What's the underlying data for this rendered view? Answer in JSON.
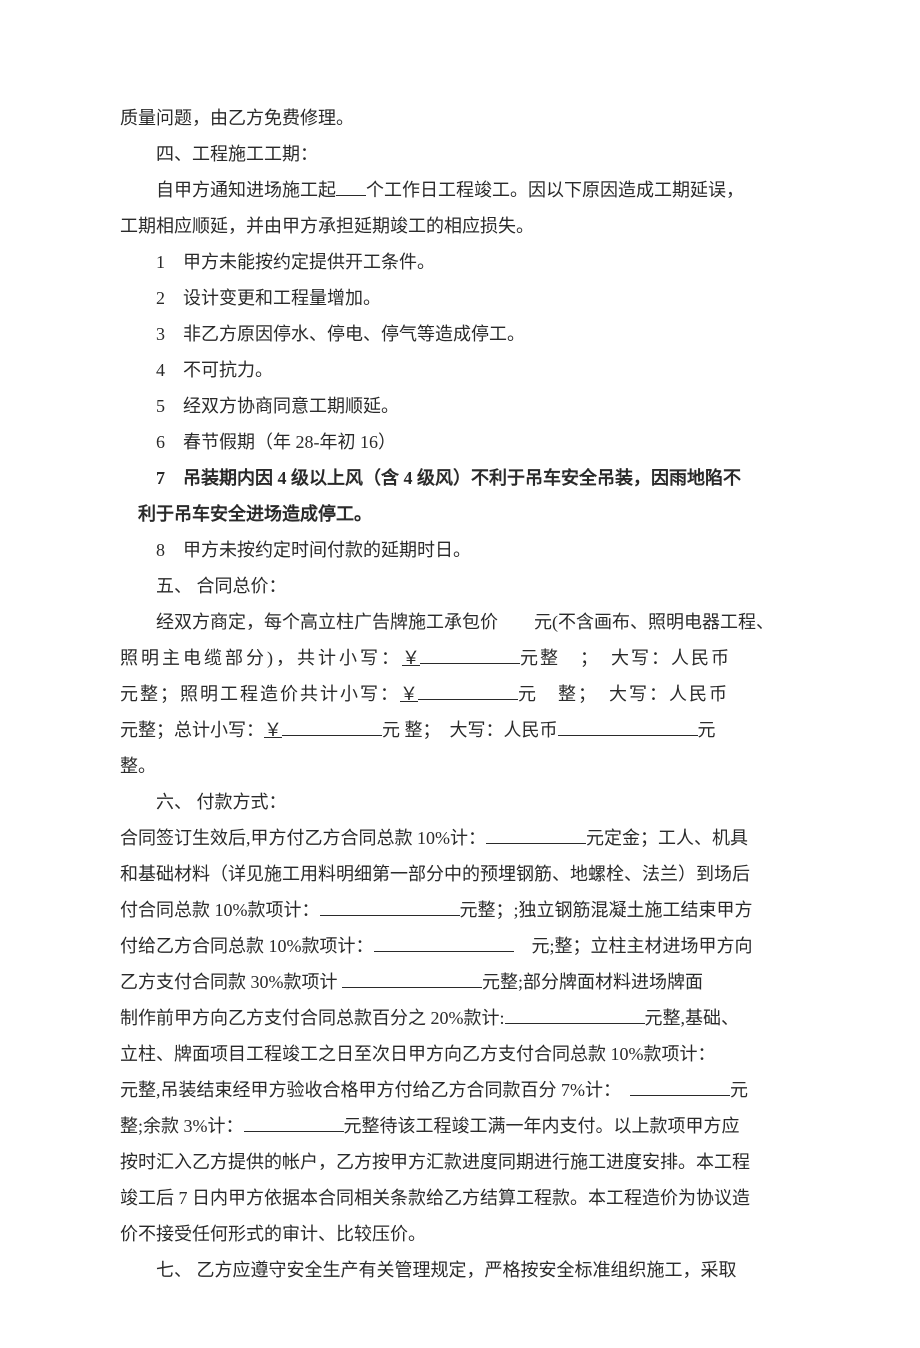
{
  "topLine": "质量问题，由乙方免费修理。",
  "sec4": {
    "title": "四、工程施工工期：",
    "intro_a": "自甲方通知进场施工起",
    "intro_b": "个工作日工程竣工。因以下原因造成工期延误，",
    "intro_c": "工期相应顺延，并由甲方承担延期竣工的相应损失。",
    "items": [
      "1　甲方未能按约定提供开工条件。",
      "2　设计变更和工程量增加。",
      "3　非乙方原因停水、停电、停气等造成停工。",
      "4　不可抗力。",
      "5　经双方协商同意工期顺延。",
      "6　春节假期（年 28-年初 16）"
    ],
    "item7a": "7　吊装期内因 4 级以上风（含 4 级风）不利于吊车安全吊装，因雨地陷不",
    "item7b": "利于吊车安全进场造成停工。",
    "item8": "8　甲方未按约定时间付款的延期时日。"
  },
  "sec5": {
    "title": "五、 合同总价：",
    "l1": "经双方商定，每个高立柱广告牌施工承包价　　元(不含画布、照明电器工程、",
    "l2a": "照明主电缆部分)，共计小写：",
    "yen": "￥",
    "l2b": "元整　；　大写：人民币",
    "l3a": "元整；照明工程造价共计小写：",
    "l3b": "元　整；　大写：人民币",
    "l4a": "元整；总计小写：",
    "l4b": "元 整；　大写：人民币",
    "l4c": "元",
    "l5": "整。"
  },
  "sec6": {
    "title": "六、 付款方式：",
    "p1a": "合同签订生效后,甲方付乙方合同总款 10%计：",
    "p1b": "元定金；工人、机具",
    "p2": "和基础材料（详见施工用料明细第一部分中的预埋钢筋、地螺栓、法兰）到场后",
    "p3a": "付合同总款 10%款项计：",
    "p3b": "元整；;独立钢筋混凝土施工结束甲方",
    "p4a": "付给乙方合同总款 10%款项计：",
    "p4b": "　元;整；立柱主材进场甲方向",
    "p5a": "乙方支付合同款 30%款项计 ",
    "p5b": "元整;部分牌面材料进场牌面",
    "p6a": "制作前甲方向乙方支付合同总款百分之 20%款计:",
    "p6b": "元整,基础、",
    "p7": "立柱、牌面项目工程竣工之日至次日甲方向乙方支付合同总款 10%款项计：",
    "p8a": "元整,吊装结束经甲方验收合格甲方付给乙方合同款百分 7%计：　",
    "p8b": "元",
    "p9a": "整;余款 3%计：",
    "p9b": "元整待该工程竣工满一年内支付。以上款项甲方应",
    "p10": "按时汇入乙方提供的帐户，乙方按甲方汇款进度同期进行施工进度安排。本工程",
    "p11": "竣工后 7 日内甲方依据本合同相关条款给乙方结算工程款。本工程造价为协议造",
    "p12": "价不接受任何形式的审计、比较压价。"
  },
  "sec7": "七、 乙方应遵守安全生产有关管理规定，严格按安全标准组织施工，采取"
}
